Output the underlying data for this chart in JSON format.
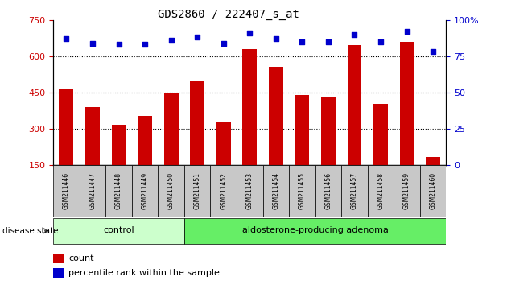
{
  "title": "GDS2860 / 222407_s_at",
  "samples": [
    "GSM211446",
    "GSM211447",
    "GSM211448",
    "GSM211449",
    "GSM211450",
    "GSM211451",
    "GSM211452",
    "GSM211453",
    "GSM211454",
    "GSM211455",
    "GSM211456",
    "GSM211457",
    "GSM211458",
    "GSM211459",
    "GSM211460"
  ],
  "counts": [
    465,
    390,
    318,
    355,
    450,
    500,
    328,
    628,
    555,
    440,
    435,
    645,
    405,
    660,
    185
  ],
  "percentiles": [
    87,
    84,
    83,
    83,
    86,
    88,
    84,
    91,
    87,
    85,
    85,
    90,
    85,
    92,
    78
  ],
  "groups": [
    "control",
    "control",
    "control",
    "control",
    "control",
    "adenoma",
    "adenoma",
    "adenoma",
    "adenoma",
    "adenoma",
    "adenoma",
    "adenoma",
    "adenoma",
    "adenoma",
    "adenoma"
  ],
  "control_color": "#ccffcc",
  "adenoma_color": "#66ee66",
  "bar_color": "#cc0000",
  "dot_color": "#0000cc",
  "ylim_left": [
    150,
    750
  ],
  "ylim_right": [
    0,
    100
  ],
  "yticks_left": [
    150,
    300,
    450,
    600,
    750
  ],
  "yticks_right": [
    0,
    25,
    50,
    75,
    100
  ],
  "grid_values": [
    300,
    450,
    600
  ],
  "bg_color": "#ffffff",
  "bar_width": 0.55
}
